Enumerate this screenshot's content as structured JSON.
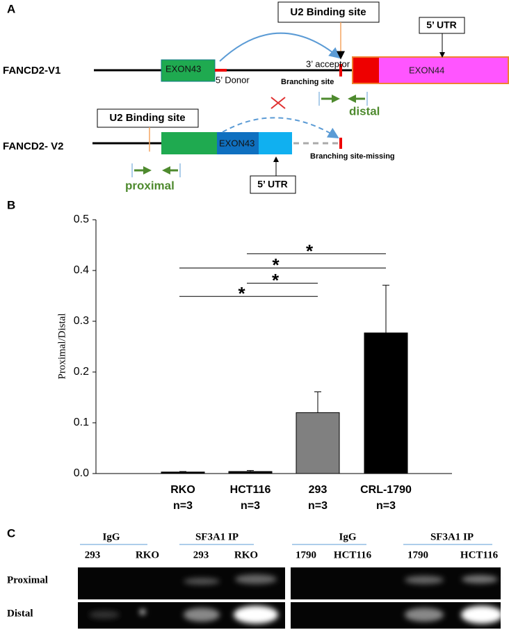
{
  "panel_a": {
    "label": "A",
    "v1_name": "FANCD2-V1",
    "v2_name": "FANCD2- V2",
    "v1_u2": "U2 Binding site",
    "v1_utr": "5’ UTR",
    "v1_exon43": "EXON43",
    "v1_exon44": "EXON44",
    "donor": "5’ Donor",
    "acceptor": "3’ acceptor",
    "branching": "Branching site",
    "distal": "distal",
    "v2_u2": "U2 Binding site",
    "v2_exon43": "EXON43",
    "v2_utr": "5’ UTR",
    "branching_missing": "Branching site-missing",
    "proximal": "proximal"
  },
  "chart_data": {
    "type": "bar",
    "panel_label": "B",
    "y_label": "Proximal/Distal",
    "categories": [
      "RKO",
      "HCT116",
      "293",
      "CRL-1790"
    ],
    "n_labels": [
      "n=3",
      "n=3",
      "n=3",
      "n=3"
    ],
    "values": [
      0.003,
      0.004,
      0.12,
      0.277
    ],
    "errors": [
      0.001,
      0.002,
      0.041,
      0.094
    ],
    "colors": [
      "#000000",
      "#000000",
      "#808080",
      "#000000"
    ],
    "ylim": [
      0,
      0.5
    ],
    "yticks": [
      {
        "value": 0,
        "label": "0.0"
      },
      0.1,
      0.2,
      0.3,
      0.4,
      0.5
    ],
    "significance": [
      {
        "label": "*",
        "y": 0.349,
        "from": 0,
        "to": 2
      },
      {
        "label": "*",
        "y": 0.375,
        "from": 1,
        "to": 2
      },
      {
        "label": "*",
        "y": 0.405,
        "from": 0,
        "to": 3
      },
      {
        "label": "*",
        "y": 0.433,
        "from": 1,
        "to": 3
      }
    ]
  },
  "panel_c": {
    "label": "C",
    "rows": [
      "Proximal",
      "Distal"
    ],
    "left": {
      "groups": [
        "IgG",
        "SF3A1 IP"
      ],
      "lanes": [
        "293",
        "RKO",
        "293",
        "RKO"
      ]
    },
    "right": {
      "groups": [
        "IgG",
        "SF3A1 IP"
      ],
      "lanes": [
        "1790",
        "HCT116",
        "1790",
        "HCT116"
      ]
    }
  }
}
